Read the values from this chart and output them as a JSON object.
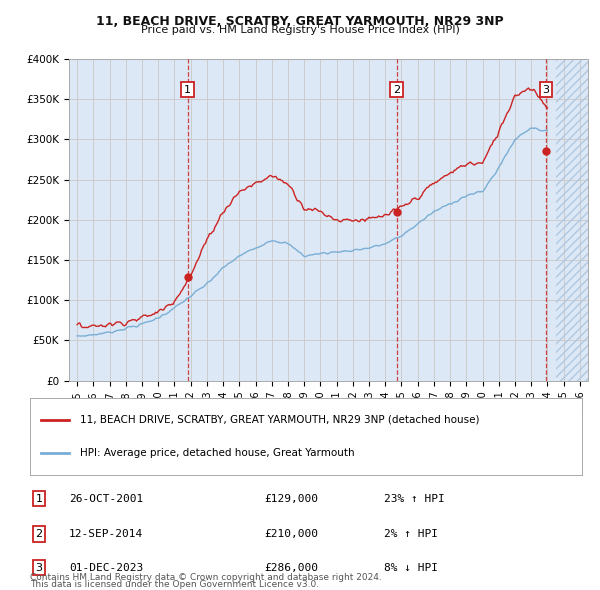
{
  "title1": "11, BEACH DRIVE, SCRATBY, GREAT YARMOUTH, NR29 3NP",
  "title2": "Price paid vs. HM Land Registry's House Price Index (HPI)",
  "legend_label1": "11, BEACH DRIVE, SCRATBY, GREAT YARMOUTH, NR29 3NP (detached house)",
  "legend_label2": "HPI: Average price, detached house, Great Yarmouth",
  "sale_points": [
    {
      "num": 1,
      "date_x": 2001.82,
      "price": 129000,
      "label": "26-OCT-2001",
      "price_str": "£129,000",
      "hpi_str": "23% ↑ HPI"
    },
    {
      "num": 2,
      "date_x": 2014.7,
      "price": 210000,
      "label": "12-SEP-2014",
      "price_str": "£210,000",
      "hpi_str": "2% ↑ HPI"
    },
    {
      "num": 3,
      "date_x": 2023.92,
      "price": 286000,
      "label": "01-DEC-2023",
      "price_str": "£286,000",
      "hpi_str": "8% ↓ HPI"
    }
  ],
  "ylim": [
    0,
    400000
  ],
  "xlim": [
    1994.5,
    2026.5
  ],
  "yticks": [
    0,
    50000,
    100000,
    150000,
    200000,
    250000,
    300000,
    350000,
    400000
  ],
  "ytick_labels": [
    "£0",
    "£50K",
    "£100K",
    "£150K",
    "£200K",
    "£250K",
    "£300K",
    "£350K",
    "£400K"
  ],
  "grid_color": "#cccccc",
  "hpi_line_color": "#7aaed6",
  "price_line_color": "#cc2222",
  "sale_marker_color": "#cc2222",
  "background_color": "#ffffff",
  "plot_bg_color": "#dce8f5",
  "future_hatch_color": "#b0c8e0",
  "footnote1": "Contains HM Land Registry data © Crown copyright and database right 2024.",
  "footnote2": "This data is licensed under the Open Government Licence v3.0.",
  "current_x": 2024.5,
  "hpi_knots_x": [
    1995,
    1996,
    1997,
    1998,
    1999,
    2000,
    2001,
    2002,
    2003,
    2004,
    2005,
    2006,
    2007,
    2008,
    2009,
    2010,
    2011,
    2012,
    2013,
    2014,
    2015,
    2016,
    2017,
    2018,
    2019,
    2020,
    2021,
    2022,
    2023,
    2024
  ],
  "hpi_knots_y": [
    55000,
    57000,
    60000,
    65000,
    70000,
    78000,
    90000,
    105000,
    120000,
    140000,
    155000,
    165000,
    175000,
    170000,
    155000,
    158000,
    160000,
    162000,
    165000,
    170000,
    180000,
    195000,
    210000,
    220000,
    230000,
    235000,
    265000,
    300000,
    315000,
    310000
  ],
  "price_knots_x": [
    1995,
    1996,
    1997,
    1998,
    1999,
    2000,
    2001,
    2002,
    2003,
    2004,
    2005,
    2006,
    2007,
    2008,
    2009,
    2010,
    2011,
    2012,
    2013,
    2014,
    2015,
    2016,
    2017,
    2018,
    2019,
    2020,
    2021,
    2022,
    2023,
    2024
  ],
  "price_knots_y": [
    68000,
    68000,
    70000,
    73000,
    78000,
    85000,
    100000,
    130000,
    175000,
    210000,
    235000,
    245000,
    255000,
    245000,
    215000,
    210000,
    200000,
    200000,
    200000,
    205000,
    215000,
    228000,
    245000,
    258000,
    270000,
    270000,
    310000,
    355000,
    365000,
    340000
  ]
}
